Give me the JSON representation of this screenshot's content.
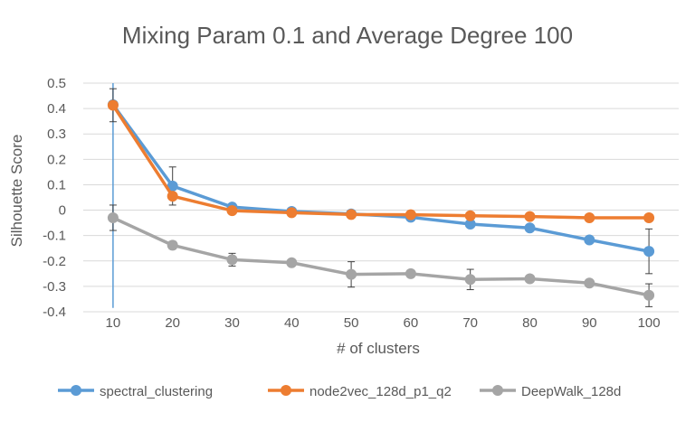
{
  "chart_data": {
    "type": "line",
    "title": "Mixing Param 0.1 and Average Degree 100",
    "xlabel": "# of clusters",
    "ylabel": "Silhouette Score",
    "categories": [
      "10",
      "20",
      "30",
      "40",
      "50",
      "60",
      "70",
      "80",
      "90",
      "100"
    ],
    "ylim": [
      -0.4,
      0.5
    ],
    "yticks": [
      "0.5",
      "0.4",
      "0.3",
      "0.2",
      "0.1",
      "0",
      "-0.1",
      "-0.2",
      "-0.3",
      "-0.4"
    ],
    "grid": true,
    "legend_position": "bottom",
    "series": [
      {
        "name": "spectral_clustering",
        "color": "#5B9BD5",
        "values": [
          0.415,
          0.095,
          0.012,
          -0.005,
          -0.015,
          -0.028,
          -0.055,
          -0.07,
          -0.117,
          -0.162
        ],
        "error": [
          null,
          0.075,
          null,
          null,
          null,
          null,
          null,
          null,
          null,
          0.088
        ],
        "extra_vertical_bar": {
          "category": "10",
          "from": 0.5,
          "to": -0.385
        }
      },
      {
        "name": "node2vec_128d_p1_q2",
        "color": "#ED7D31",
        "values": [
          0.413,
          0.055,
          -0.002,
          -0.01,
          -0.017,
          -0.018,
          -0.022,
          -0.025,
          -0.03,
          -0.03
        ],
        "error": [
          0.065,
          null,
          null,
          null,
          null,
          null,
          null,
          null,
          null,
          null
        ]
      },
      {
        "name": "DeepWalk_128d",
        "color": "#A5A5A5",
        "values": [
          -0.03,
          -0.138,
          -0.195,
          -0.207,
          -0.253,
          -0.25,
          -0.273,
          -0.27,
          -0.287,
          -0.335
        ],
        "error": [
          0.05,
          0.015,
          0.025,
          null,
          0.05,
          null,
          0.04,
          0.012,
          0.01,
          0.045
        ]
      }
    ]
  }
}
